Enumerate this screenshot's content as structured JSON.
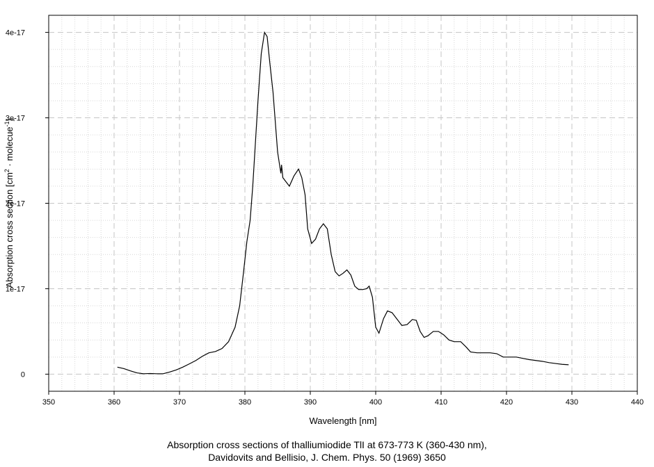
{
  "caption": {
    "line1": "Absorption cross sections of thalliumiodide TlI at 673-773 K (360-430 nm),",
    "line2": "Davidovits and Bellisio, J. Chem. Phys. 50 (1969) 3650"
  },
  "chart_data": {
    "type": "line",
    "xlabel": "Wavelength [nm]",
    "ylabel": {
      "base": "Absorption cross section [cm",
      "sup1": "2",
      "mid": " · molecue",
      "sup2": "-1",
      "end": "]"
    },
    "xlim": [
      350,
      440
    ],
    "ylim": [
      -2e-18,
      4.2e-17
    ],
    "x_ticks": [
      "350",
      "360",
      "370",
      "380",
      "390",
      "400",
      "410",
      "420",
      "430",
      "440"
    ],
    "y_ticks": [
      {
        "value": 0,
        "label": "0"
      },
      {
        "value": 1e-17,
        "label": "1e-17"
      },
      {
        "value": 2e-17,
        "label": "2e-17"
      },
      {
        "value": 3e-17,
        "label": "3e-17"
      },
      {
        "value": 4e-17,
        "label": "4e-17"
      }
    ],
    "grid": true,
    "series": [
      {
        "color": "#000000",
        "points": [
          [
            360.5,
            8.2e-19
          ],
          [
            361.5,
            6.5e-19
          ],
          [
            362.5,
            3.8e-19
          ],
          [
            363.5,
            1.5e-19
          ],
          [
            364.5,
            5e-20
          ],
          [
            365.5,
            8e-20
          ],
          [
            366.5,
            5e-20
          ],
          [
            367.5,
            5e-20
          ],
          [
            368.5,
            2.5e-19
          ],
          [
            369.5,
            5e-19
          ],
          [
            370.5,
            8.2e-19
          ],
          [
            371.5,
            1.2e-18
          ],
          [
            372.5,
            1.6e-18
          ],
          [
            373.5,
            2.1e-18
          ],
          [
            374.5,
            2.5e-18
          ],
          [
            375.5,
            2.65e-18
          ],
          [
            376.5,
            3e-18
          ],
          [
            377.5,
            3.8e-18
          ],
          [
            378.5,
            5.5e-18
          ],
          [
            379.2,
            8e-18
          ],
          [
            379.8,
            1.2e-17
          ],
          [
            380.3,
            1.55e-17
          ],
          [
            380.8,
            1.8e-17
          ],
          [
            381.2,
            2.2e-17
          ],
          [
            381.6,
            2.7e-17
          ],
          [
            382.0,
            3.2e-17
          ],
          [
            382.5,
            3.75e-17
          ],
          [
            383.0,
            4e-17
          ],
          [
            383.4,
            3.95e-17
          ],
          [
            383.8,
            3.65e-17
          ],
          [
            384.3,
            3.3e-17
          ],
          [
            384.7,
            2.9e-17
          ],
          [
            385.0,
            2.6e-17
          ],
          [
            385.3,
            2.45e-17
          ],
          [
            385.5,
            2.35e-17
          ],
          [
            385.6,
            2.45e-17
          ],
          [
            385.8,
            2.3e-17
          ],
          [
            386.3,
            2.25e-17
          ],
          [
            386.8,
            2.2e-17
          ],
          [
            387.5,
            2.32e-17
          ],
          [
            388.2,
            2.4e-17
          ],
          [
            388.7,
            2.3e-17
          ],
          [
            389.2,
            2.1e-17
          ],
          [
            389.6,
            1.7e-17
          ],
          [
            390.2,
            1.53e-17
          ],
          [
            390.8,
            1.58e-17
          ],
          [
            391.4,
            1.7e-17
          ],
          [
            392.0,
            1.76e-17
          ],
          [
            392.6,
            1.7e-17
          ],
          [
            393.2,
            1.4e-17
          ],
          [
            393.8,
            1.2e-17
          ],
          [
            394.4,
            1.15e-17
          ],
          [
            395.0,
            1.18e-17
          ],
          [
            395.6,
            1.22e-17
          ],
          [
            396.2,
            1.16e-17
          ],
          [
            396.8,
            1.03e-17
          ],
          [
            397.4,
            9.9e-18
          ],
          [
            398.0,
            9.9e-18
          ],
          [
            398.6,
            1e-17
          ],
          [
            399.0,
            1.03e-17
          ],
          [
            399.5,
            9e-18
          ],
          [
            400.0,
            5.5e-18
          ],
          [
            400.5,
            4.8e-18
          ],
          [
            401.2,
            6.5e-18
          ],
          [
            401.8,
            7.4e-18
          ],
          [
            402.5,
            7.2e-18
          ],
          [
            403.2,
            6.5e-18
          ],
          [
            404.0,
            5.7e-18
          ],
          [
            404.8,
            5.8e-18
          ],
          [
            405.6,
            6.4e-18
          ],
          [
            406.2,
            6.3e-18
          ],
          [
            406.8,
            5e-18
          ],
          [
            407.4,
            4.3e-18
          ],
          [
            408.0,
            4.5e-18
          ],
          [
            408.8,
            5e-18
          ],
          [
            409.6,
            5e-18
          ],
          [
            410.4,
            4.6e-18
          ],
          [
            411.2,
            4e-18
          ],
          [
            412.0,
            3.8e-18
          ],
          [
            413.0,
            3.8e-18
          ],
          [
            413.8,
            3.2e-18
          ],
          [
            414.5,
            2.6e-18
          ],
          [
            415.5,
            2.5e-18
          ],
          [
            416.5,
            2.5e-18
          ],
          [
            417.5,
            2.5e-18
          ],
          [
            418.5,
            2.4e-18
          ],
          [
            419.5,
            2e-18
          ],
          [
            420.5,
            2e-18
          ],
          [
            421.5,
            2e-18
          ],
          [
            422.5,
            1.85e-18
          ],
          [
            423.5,
            1.7e-18
          ],
          [
            424.5,
            1.6e-18
          ],
          [
            425.5,
            1.5e-18
          ],
          [
            426.5,
            1.35e-18
          ],
          [
            427.5,
            1.25e-18
          ],
          [
            428.5,
            1.15e-18
          ],
          [
            429.5,
            1.1e-18
          ]
        ]
      }
    ]
  }
}
